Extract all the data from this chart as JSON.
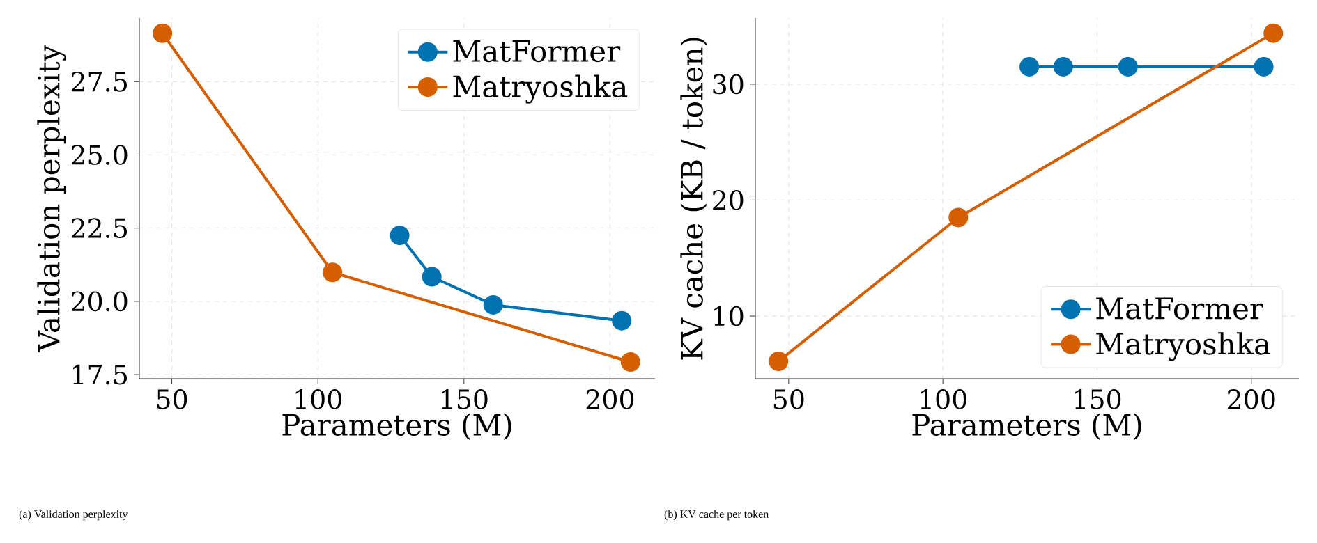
{
  "chart_data": [
    {
      "type": "line",
      "xlabel": "Parameters (M)",
      "ylabel": "Validation perplexity",
      "xlim": [
        38.9,
        215.4
      ],
      "ylim": [
        17.36,
        29.67
      ],
      "xticks": [
        50,
        100,
        150,
        200
      ],
      "yticks": [
        {
          "value": 17.5,
          "label": "17.5"
        },
        {
          "value": 20,
          "label": "20.0"
        },
        {
          "value": 22.5,
          "label": "22.5"
        },
        {
          "value": 25,
          "label": "25.0"
        },
        {
          "value": 27.5,
          "label": "27.5"
        }
      ],
      "grid": true,
      "legend": "top right",
      "marker": "circle",
      "line_style": "solid",
      "annotations": [
        "(a) Validation perplexity"
      ],
      "series": [
        {
          "name": "MatFormer",
          "color": "#0072b2",
          "x": [
            128,
            139,
            160,
            204
          ],
          "values": [
            22.25,
            20.84,
            19.88,
            19.34
          ]
        },
        {
          "name": "Matryoshka",
          "color": "#d55e00",
          "x": [
            46.8,
            105,
            207
          ],
          "values": [
            29.15,
            20.99,
            17.93
          ]
        }
      ]
    },
    {
      "type": "line",
      "xlabel": "Parameters (M)",
      "ylabel": "KV cache (KB / token)",
      "xlim": [
        39.2,
        215.4
      ],
      "ylim": [
        4.6,
        35.7
      ],
      "xticks": [
        50,
        100,
        150,
        200
      ],
      "yticks": [
        10,
        20,
        30
      ],
      "grid": true,
      "legend": "bottom right",
      "marker": "circle",
      "line_style": "solid",
      "annotations": [
        "(b) KV cache per token"
      ],
      "series": [
        {
          "name": "MatFormer",
          "color": "#0072b2",
          "x": [
            128,
            139,
            160,
            204
          ],
          "values": [
            31.5,
            31.5,
            31.5,
            31.5
          ]
        },
        {
          "name": "Matryoshka",
          "color": "#d55e00",
          "x": [
            46.7,
            105,
            207.1
          ],
          "values": [
            6.1,
            18.5,
            34.4
          ]
        }
      ]
    }
  ]
}
